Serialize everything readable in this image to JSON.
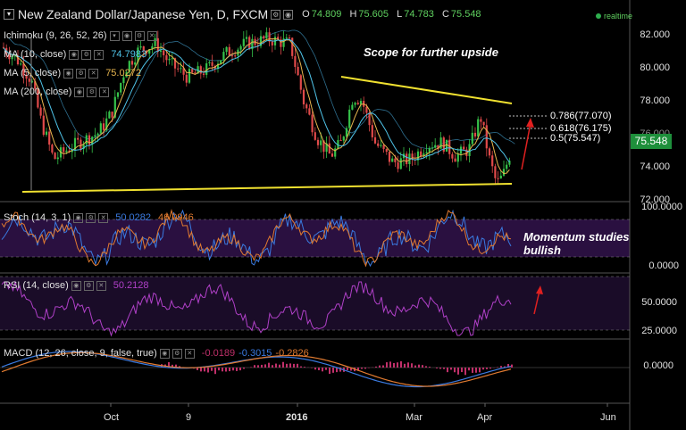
{
  "header": {
    "title": "New Zealand Dollar/Japanese Yen, D, FXCM",
    "ohlc": [
      {
        "k": "O",
        "v": "74.809"
      },
      {
        "k": "H",
        "v": "75.605"
      },
      {
        "k": "L",
        "v": "74.783"
      },
      {
        "k": "C",
        "v": "75.548"
      }
    ],
    "status": "realtime"
  },
  "indicators": {
    "ichimoku": {
      "label": "Ichimoku (9, 26, 52, 26)"
    },
    "ma10": {
      "label": "MA (10, close)",
      "value": "74.7983",
      "color": "#4fc3e8"
    },
    "ma5": {
      "label": "MA (5, close)",
      "value": "75.0272",
      "color": "#e8b64f"
    },
    "ma200": {
      "label": "MA (200, close)"
    }
  },
  "annotations": {
    "main": "Scope for further upside",
    "stoch": "Momentum studies bullish"
  },
  "fib_levels": [
    {
      "label": "0.786(77.070)",
      "value": 77.07
    },
    {
      "label": "0.618(76.175)",
      "value": 76.175
    },
    {
      "label": "0.5(75.547)",
      "value": 75.547
    }
  ],
  "price_axis": [
    "82.000",
    "80.000",
    "78.000",
    "76.000",
    "74.000",
    "72.000"
  ],
  "last_price": "75.548",
  "stoch": {
    "label": "Stoch (14, 3, 1)",
    "v1": "50.0282",
    "v2": "46.0946",
    "axis": [
      "100.0000",
      "0.0000"
    ]
  },
  "rsi": {
    "label": "RSI (14, close)",
    "value": "50.2128",
    "axis": [
      "50.0000",
      "25.0000"
    ]
  },
  "macd": {
    "label": "MACD (12, 26, close, 9, false, true)",
    "v1": "-0.0189",
    "v2": "-0.3015",
    "v3": "-0.2826",
    "axis": [
      "0.0000"
    ]
  },
  "time_axis": [
    "Oct",
    "9",
    "2016",
    "Mar",
    "Apr",
    "Jun"
  ],
  "colors": {
    "bull": "#36c24a",
    "bear": "#e04a4a",
    "trend": "#f0e130",
    "stoch_k": "#3a7ae0",
    "stoch_d": "#e07a30",
    "rsi": "#b040c8",
    "macd": "#3a7ae0",
    "signal": "#e07a30",
    "hist": "#c0306a"
  }
}
